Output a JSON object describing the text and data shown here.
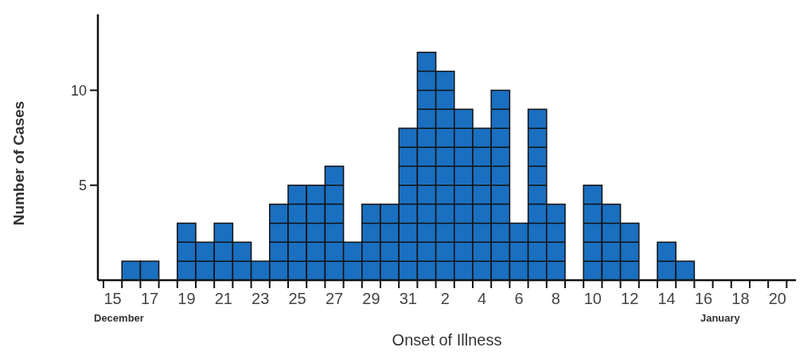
{
  "chart_data": {
    "type": "bar",
    "xlabel": "Onset of Illness",
    "ylabel": "Number of Cases",
    "categories": [
      "15",
      null,
      "17",
      null,
      "19",
      null,
      "21",
      null,
      "23",
      null,
      "25",
      null,
      "27",
      null,
      "29",
      null,
      "31",
      null,
      "2",
      null,
      "4",
      null,
      "6",
      null,
      "8",
      null,
      "10",
      null,
      "12",
      null,
      "14",
      null,
      "16",
      null,
      "18",
      null,
      "20"
    ],
    "values": [
      0,
      1,
      1,
      0,
      3,
      2,
      3,
      2,
      1,
      4,
      5,
      5,
      6,
      2,
      4,
      4,
      8,
      12,
      11,
      9,
      8,
      10,
      3,
      9,
      4,
      0,
      5,
      4,
      3,
      0,
      2,
      1,
      0,
      0,
      0,
      0,
      0
    ],
    "color": "#1a6fc0",
    "ylim": [
      0,
      14
    ],
    "yticks": [
      5,
      10
    ],
    "grid": false,
    "annotations": [
      "December",
      "January"
    ]
  }
}
